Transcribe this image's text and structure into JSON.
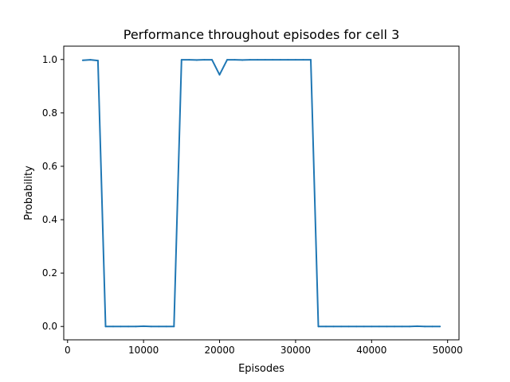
{
  "chart_data": {
    "type": "line",
    "title": "Performance throughout episodes for cell 3",
    "xlabel": "Episodes",
    "ylabel": "Probability",
    "xlim": [
      -500,
      51500
    ],
    "ylim": [
      -0.05,
      1.05
    ],
    "xticks": [
      0,
      10000,
      20000,
      30000,
      40000,
      50000
    ],
    "yticks": [
      0.0,
      0.2,
      0.4,
      0.6,
      0.8,
      1.0
    ],
    "xtick_labels": [
      "0",
      "10000",
      "20000",
      "30000",
      "40000",
      "50000"
    ],
    "ytick_labels": [
      "0.0",
      "0.2",
      "0.4",
      "0.6",
      "0.8",
      "1.0"
    ],
    "grid": false,
    "series": [
      {
        "color": "#1f77b4",
        "x": [
          2000,
          3000,
          4000,
          5000,
          6000,
          7000,
          8000,
          9000,
          10000,
          11000,
          12000,
          13000,
          14000,
          15000,
          16000,
          17000,
          18000,
          19000,
          20000,
          21000,
          22000,
          23000,
          24000,
          25000,
          26000,
          27000,
          28000,
          29000,
          30000,
          31000,
          32000,
          33000,
          34000,
          35000,
          36000,
          37000,
          38000,
          39000,
          40000,
          41000,
          42000,
          43000,
          44000,
          45000,
          46000,
          47000,
          48000,
          49000
        ],
        "y": [
          0.997,
          0.999,
          0.996,
          0.0,
          0.0,
          0.0,
          0.0,
          0.0,
          0.001,
          0.0,
          0.0,
          0.0,
          0.0,
          0.999,
          0.999,
          0.998,
          0.999,
          0.999,
          0.943,
          0.999,
          0.999,
          0.998,
          0.999,
          0.999,
          0.999,
          0.999,
          0.999,
          0.999,
          0.999,
          0.999,
          0.999,
          0.0,
          0.0,
          0.0,
          0.0,
          0.0,
          0.0,
          0.0,
          0.0,
          0.0,
          0.0,
          0.0,
          0.0,
          0.0,
          0.001,
          0.0,
          0.0,
          0.0
        ]
      }
    ]
  }
}
